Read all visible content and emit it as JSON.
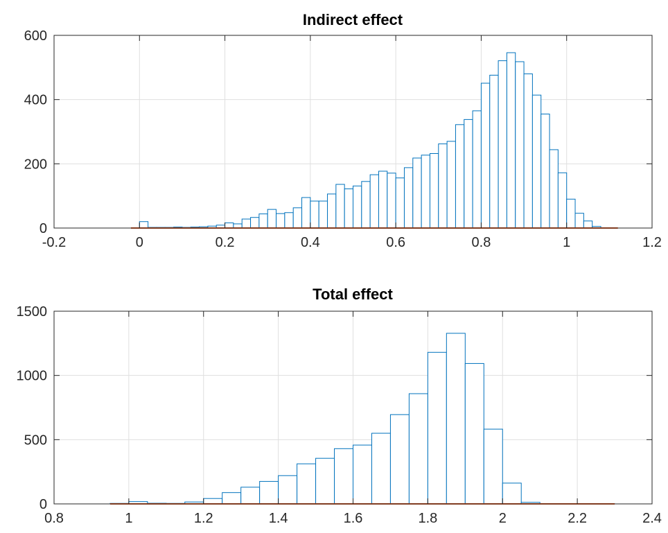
{
  "chart_data": [
    {
      "type": "bar",
      "title": "Indirect effect",
      "xlabel": "",
      "ylabel": "",
      "xlim": [
        -0.2,
        1.2
      ],
      "ylim": [
        0,
        600
      ],
      "xticks": [
        -0.2,
        0,
        0.2,
        0.4,
        0.6,
        0.8,
        1,
        1.2
      ],
      "xtick_labels": [
        "-0.2",
        "0",
        "0.2",
        "0.4",
        "0.6",
        "0.8",
        "1",
        "1.2"
      ],
      "yticks": [
        0,
        200,
        400,
        600
      ],
      "ytick_labels": [
        "0",
        "200",
        "400",
        "600"
      ],
      "grid": true,
      "bin_edges": [
        0,
        0.02,
        0.04,
        0.06,
        0.08,
        0.1,
        0.12,
        0.14,
        0.16,
        0.18,
        0.2,
        0.22,
        0.24,
        0.26,
        0.28,
        0.3,
        0.32,
        0.34,
        0.36,
        0.38,
        0.4,
        0.42,
        0.44,
        0.46,
        0.48,
        0.5,
        0.52,
        0.54,
        0.56,
        0.58,
        0.6,
        0.62,
        0.64,
        0.66,
        0.68,
        0.7,
        0.72,
        0.74,
        0.76,
        0.78,
        0.8,
        0.82,
        0.84,
        0.86,
        0.88,
        0.9,
        0.92,
        0.94,
        0.96,
        0.98,
        1,
        1.02,
        1.04,
        1.06,
        1.08,
        1.1
      ],
      "values": [
        20,
        2,
        2,
        2,
        3,
        2,
        3,
        4,
        6,
        9,
        16,
        13,
        28,
        33,
        44,
        58,
        45,
        48,
        63,
        95,
        84,
        84,
        106,
        136,
        122,
        131,
        145,
        166,
        177,
        171,
        156,
        188,
        218,
        227,
        232,
        262,
        270,
        322,
        338,
        365,
        451,
        476,
        521,
        546,
        518,
        480,
        414,
        355,
        244,
        172,
        90,
        46,
        22,
        5,
        1
      ],
      "baseline_range": [
        -0.02,
        1.12
      ]
    },
    {
      "type": "bar",
      "title": "Total effect",
      "xlabel": "",
      "ylabel": "",
      "xlim": [
        0.8,
        2.4
      ],
      "ylim": [
        0,
        1500
      ],
      "xticks": [
        0.8,
        1,
        1.2,
        1.4,
        1.6,
        1.8,
        2,
        2.2,
        2.4
      ],
      "xtick_labels": [
        "0.8",
        "1",
        "1.2",
        "1.4",
        "1.6",
        "1.8",
        "2",
        "2.2",
        "2.4"
      ],
      "yticks": [
        0,
        500,
        1000,
        1500
      ],
      "ytick_labels": [
        "0",
        "500",
        "1000",
        "1500"
      ],
      "grid": true,
      "bin_edges": [
        0.95,
        1,
        1.05,
        1.1,
        1.15,
        1.2,
        1.25,
        1.3,
        1.35,
        1.4,
        1.45,
        1.5,
        1.55,
        1.6,
        1.65,
        1.7,
        1.75,
        1.8,
        1.85,
        1.9,
        1.95,
        2,
        2.05,
        2.1,
        2.15,
        2.2,
        2.25,
        2.3
      ],
      "values": [
        4,
        18,
        5,
        4,
        15,
        42,
        88,
        130,
        175,
        220,
        312,
        355,
        430,
        458,
        550,
        695,
        858,
        1180,
        1328,
        1093,
        582,
        162,
        12,
        2,
        2,
        2,
        1
      ],
      "baseline_range": [
        0.95,
        2.3
      ]
    }
  ]
}
